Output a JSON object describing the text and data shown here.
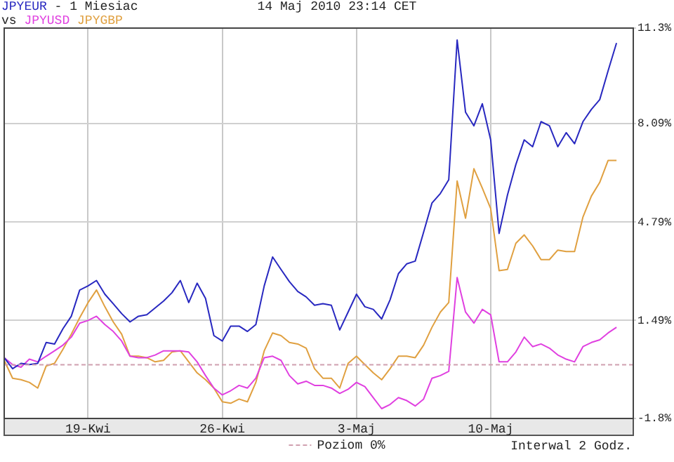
{
  "chart_data": {
    "type": "line",
    "title": "- 1 Miesiac",
    "subtitle": "14 Maj 2010 23:14 CET",
    "legend_title": "vs",
    "grid": true,
    "marker": "none",
    "line_style": "solid",
    "annotations": [
      "Interwal 2 Godz."
    ],
    "ref_lines": [
      {
        "axis": "y",
        "value": 0,
        "label": "Poziom 0%",
        "color": "#d0a0b0",
        "line_style": "dashed"
      }
    ],
    "categories": [
      null,
      null,
      null,
      null,
      null,
      null,
      null,
      null,
      null,
      null,
      "19-Kwi",
      null,
      null,
      null,
      null,
      null,
      null,
      null,
      null,
      null,
      null,
      null,
      null,
      null,
      null,
      null,
      "26-Kwi",
      null,
      null,
      null,
      null,
      null,
      null,
      null,
      null,
      null,
      null,
      null,
      null,
      null,
      null,
      null,
      "3-Maj",
      null,
      null,
      null,
      null,
      null,
      null,
      null,
      null,
      null,
      null,
      null,
      null,
      null,
      null,
      null,
      "10-Maj",
      null,
      null,
      null,
      null,
      null,
      null,
      null,
      null,
      null,
      null,
      null,
      null,
      null,
      null,
      null,
      null,
      null
    ],
    "ylim": [
      -1.8,
      11.3
    ],
    "yticks": [
      {
        "value": -1.8,
        "label": "-1.8%"
      },
      {
        "value": 1.49,
        "label": "1.49%"
      },
      {
        "value": 4.79,
        "label": "4.79%"
      },
      {
        "value": 8.09,
        "label": "8.09%"
      },
      {
        "value": 11.3,
        "label": "11.3%"
      }
    ],
    "series": [
      {
        "name": "JPYEUR",
        "color": "#2828c0",
        "values": [
          0.24,
          -0.13,
          0.05,
          0.01,
          0.05,
          0.75,
          0.7,
          1.21,
          1.63,
          2.51,
          2.65,
          2.83,
          2.37,
          2.05,
          1.72,
          1.44,
          1.63,
          1.68,
          1.91,
          2.14,
          2.42,
          2.83,
          2.09,
          2.74,
          2.23,
          0.98,
          0.8,
          1.3,
          1.3,
          1.12,
          1.35,
          2.65,
          3.62,
          3.2,
          2.79,
          2.46,
          2.28,
          2.0,
          2.05,
          2.0,
          1.17,
          1.77,
          2.37,
          1.95,
          1.86,
          1.54,
          2.18,
          3.06,
          3.39,
          3.48,
          4.45,
          5.43,
          5.75,
          6.21,
          10.9,
          8.48,
          8.02,
          8.76,
          7.55,
          4.41,
          5.7,
          6.72,
          7.55,
          7.32,
          8.16,
          8.02,
          7.32,
          7.79,
          7.42,
          8.16,
          8.57,
          8.9,
          9.87,
          10.8,
          null,
          null
        ]
      },
      {
        "name": "JPYUSD",
        "color": "#e040e0",
        "values": [
          0.24,
          0.01,
          -0.08,
          0.19,
          0.1,
          0.29,
          0.47,
          0.66,
          0.93,
          1.4,
          1.49,
          1.63,
          1.35,
          1.12,
          0.8,
          0.29,
          0.24,
          0.24,
          0.33,
          0.47,
          0.47,
          0.47,
          0.43,
          0.1,
          -0.36,
          -0.78,
          -1.01,
          -0.87,
          -0.69,
          -0.78,
          -0.45,
          0.24,
          0.29,
          0.15,
          -0.36,
          -0.64,
          -0.55,
          -0.69,
          -0.69,
          -0.78,
          -0.96,
          -0.82,
          -0.59,
          -0.73,
          -1.1,
          -1.47,
          -1.33,
          -1.1,
          -1.2,
          -1.38,
          -1.15,
          -0.45,
          -0.36,
          -0.22,
          2.93,
          1.77,
          1.4,
          1.86,
          1.68,
          0.1,
          0.1,
          0.43,
          0.93,
          0.61,
          0.7,
          0.56,
          0.33,
          0.19,
          0.1,
          0.61,
          0.75,
          0.84,
          1.07,
          1.26,
          null,
          null
        ]
      },
      {
        "name": "JPYGBP",
        "color": "#e0a040",
        "values": [
          0.15,
          -0.45,
          -0.5,
          -0.59,
          -0.78,
          -0.04,
          0.05,
          0.52,
          1.03,
          1.58,
          2.09,
          2.51,
          1.95,
          1.44,
          1.03,
          0.29,
          0.29,
          0.24,
          0.1,
          0.15,
          0.43,
          0.47,
          0.1,
          -0.27,
          -0.5,
          -0.78,
          -1.24,
          -1.29,
          -1.15,
          -1.24,
          -0.59,
          0.47,
          1.07,
          0.98,
          0.75,
          0.7,
          0.56,
          -0.13,
          -0.45,
          -0.45,
          -0.78,
          0.05,
          0.29,
          0.01,
          -0.27,
          -0.5,
          -0.13,
          0.29,
          0.29,
          0.24,
          0.66,
          1.26,
          1.77,
          2.09,
          6.17,
          4.92,
          6.58,
          5.93,
          5.24,
          3.16,
          3.2,
          4.08,
          4.36,
          3.99,
          3.53,
          3.53,
          3.85,
          3.8,
          3.8,
          4.96,
          5.66,
          6.12,
          6.86,
          6.86,
          null,
          null
        ]
      }
    ]
  }
}
